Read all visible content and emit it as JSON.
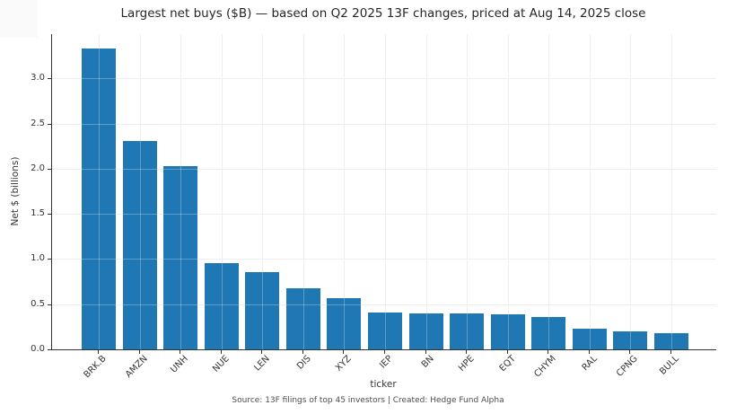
{
  "chart_data": {
    "type": "bar",
    "title": "Largest net buys ($B) — based on Q2 2025 13F changes, priced at Aug 14, 2025 close",
    "xlabel": "ticker",
    "ylabel": "Net $ (billions)",
    "categories": [
      "BRK.B",
      "AMZN",
      "UNH",
      "NUE",
      "LEN",
      "DIS",
      "XYZ",
      "IEP",
      "BN",
      "HPE",
      "EQT",
      "CHYM",
      "RAL",
      "CPNG",
      "BULL"
    ],
    "values": [
      3.33,
      2.31,
      2.03,
      0.95,
      0.86,
      0.68,
      0.57,
      0.41,
      0.4,
      0.4,
      0.39,
      0.36,
      0.23,
      0.2,
      0.18
    ],
    "yticks": [
      0.0,
      0.5,
      1.0,
      1.5,
      2.0,
      2.5,
      3.0
    ],
    "ytick_labels": [
      "0.0",
      "0.5",
      "1.0",
      "1.5",
      "2.0",
      "2.5",
      "3.0"
    ],
    "ylim": [
      0,
      3.49
    ],
    "grid": true,
    "legend": false,
    "bar_color": "#1f77b4",
    "axis_color": "#333333",
    "grid_color": "#e8e8e8",
    "source_note": "Source: 13F filings of top 45 investors | Created: Hedge Fund Alpha"
  }
}
